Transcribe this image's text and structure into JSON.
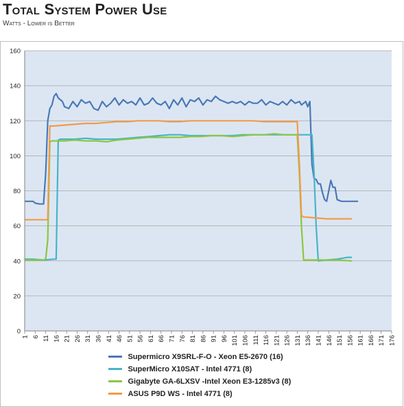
{
  "header": {
    "title": "Total System Power Use",
    "subtitle": "Watts - Lower is Better"
  },
  "chart_data": {
    "type": "line",
    "title": "Total System Power Use",
    "subtitle": "Watts - Lower is Better",
    "xlabel": "",
    "ylabel": "",
    "ylim": [
      0,
      160
    ],
    "yticks": [
      0,
      20,
      40,
      60,
      80,
      100,
      120,
      140,
      160
    ],
    "xlim": [
      1,
      176
    ],
    "xticks": [
      1,
      6,
      11,
      16,
      21,
      26,
      31,
      36,
      41,
      46,
      51,
      56,
      61,
      66,
      71,
      76,
      81,
      86,
      91,
      96,
      101,
      106,
      111,
      116,
      121,
      126,
      131,
      136,
      141,
      146,
      151,
      156,
      161,
      166,
      171,
      176
    ],
    "grid": true,
    "legend_position": "bottom",
    "plot_background": "#dce6f2",
    "series": [
      {
        "name": "Supermicro X9SRL-F-O  - Xeon E5-2670 (16)",
        "color": "#4a78b7",
        "x": [
          1,
          5,
          6,
          8,
          10,
          11,
          12,
          13,
          14,
          15,
          16,
          17,
          18,
          19,
          20,
          22,
          24,
          26,
          28,
          30,
          32,
          34,
          36,
          38,
          40,
          42,
          44,
          46,
          48,
          50,
          52,
          54,
          56,
          58,
          60,
          62,
          64,
          66,
          68,
          70,
          72,
          74,
          76,
          78,
          80,
          82,
          84,
          86,
          88,
          90,
          92,
          94,
          96,
          98,
          100,
          102,
          104,
          106,
          108,
          110,
          112,
          114,
          116,
          118,
          120,
          122,
          124,
          126,
          128,
          130,
          132,
          133,
          134,
          135,
          136,
          137,
          138,
          139,
          140,
          141,
          142,
          143,
          144,
          145,
          146,
          147,
          148,
          149,
          150,
          152,
          154,
          156,
          158,
          160
        ],
        "y": [
          74,
          74,
          73,
          72.5,
          72.5,
          90,
          120,
          127,
          129,
          134,
          135.5,
          133,
          132,
          131,
          128,
          127,
          131,
          128,
          132,
          130,
          131,
          127,
          126,
          131,
          128,
          130,
          133,
          129,
          132,
          130,
          131,
          129,
          133,
          129,
          130,
          133,
          130,
          129,
          131,
          127,
          132,
          129,
          133,
          128,
          132,
          131,
          133,
          129,
          132,
          131,
          134,
          132,
          131,
          130,
          131,
          130,
          131,
          129,
          131,
          130,
          130,
          132,
          129,
          131,
          130,
          129,
          131,
          129,
          132,
          130,
          131,
          129,
          130,
          131,
          128,
          131,
          95,
          87,
          86.5,
          84,
          84,
          79,
          75,
          74,
          80,
          86,
          82,
          82,
          75,
          74,
          74,
          74,
          74,
          74
        ]
      },
      {
        "name": "SuperMicro X10SAT  -  Intel 4771 (8)",
        "color": "#46b4c9",
        "x": [
          1,
          5,
          10,
          15,
          16,
          17,
          18,
          20,
          25,
          30,
          35,
          40,
          45,
          50,
          55,
          60,
          65,
          70,
          75,
          80,
          85,
          90,
          95,
          100,
          105,
          110,
          115,
          120,
          125,
          130,
          135,
          137,
          138,
          139,
          140,
          141,
          145,
          150,
          155,
          156,
          157
        ],
        "y": [
          41,
          41,
          40.5,
          41,
          41,
          109,
          109.5,
          109.5,
          109.5,
          110,
          109.5,
          109.5,
          109.5,
          110,
          110.5,
          111,
          111.5,
          112,
          112,
          111.5,
          111.5,
          111.5,
          111.5,
          111.5,
          112,
          112,
          112,
          112,
          112,
          112,
          112,
          112,
          112,
          90,
          60,
          40,
          40.5,
          41,
          42,
          42,
          42
        ]
      },
      {
        "name": "Gigabyte GA-6LXSV -Intel Xeon E3-1285v3 (8)",
        "color": "#8cc63f",
        "x": [
          1,
          5,
          10,
          11,
          12,
          13,
          14,
          15,
          20,
          25,
          30,
          35,
          40,
          45,
          50,
          55,
          60,
          65,
          70,
          75,
          80,
          85,
          90,
          95,
          100,
          105,
          110,
          115,
          120,
          125,
          130,
          131,
          132,
          133,
          134,
          135,
          140,
          145,
          150,
          157
        ],
        "y": [
          40.5,
          40.5,
          40.5,
          41,
          52,
          108,
          108.5,
          108.5,
          108.5,
          109,
          108.5,
          108.5,
          108,
          109,
          109.5,
          110,
          110.5,
          110.5,
          110.5,
          110.5,
          111,
          111,
          111.5,
          111.5,
          111,
          111.5,
          112,
          112,
          112.5,
          112,
          112,
          112,
          90,
          60,
          40.5,
          40.5,
          40.5,
          40.5,
          40.5,
          40
        ]
      },
      {
        "name": "ASUS P9D WS -  Intel 4771 (8)",
        "color": "#f29a4a",
        "x": [
          1,
          5,
          10,
          11,
          12,
          13,
          14,
          15,
          20,
          25,
          30,
          35,
          40,
          45,
          50,
          55,
          60,
          65,
          70,
          75,
          80,
          85,
          90,
          95,
          100,
          105,
          110,
          115,
          120,
          125,
          130,
          131,
          132,
          133,
          134,
          135,
          140,
          145,
          150,
          157
        ],
        "y": [
          63.5,
          63.5,
          63.5,
          63.5,
          63.5,
          117,
          117,
          117,
          117.5,
          118,
          118.5,
          118.5,
          119,
          119.5,
          119.5,
          120,
          120,
          120,
          119.5,
          119.5,
          120,
          120,
          120,
          120,
          120,
          120,
          120,
          119.5,
          119.5,
          119.5,
          119.5,
          119.5,
          95,
          66,
          65,
          65,
          64.5,
          64,
          64,
          64
        ]
      }
    ]
  },
  "legend": {
    "items": [
      {
        "label": "Supermicro X9SRL-F-O  - Xeon E5-2670 (16)",
        "color": "#4a78b7"
      },
      {
        "label": "SuperMicro X10SAT  -  Intel 4771 (8)",
        "color": "#46b4c9"
      },
      {
        "label": "Gigabyte GA-6LXSV -Intel Xeon E3-1285v3 (8)",
        "color": "#8cc63f"
      },
      {
        "label": "ASUS P9D WS -  Intel 4771 (8)",
        "color": "#f29a4a"
      }
    ]
  }
}
